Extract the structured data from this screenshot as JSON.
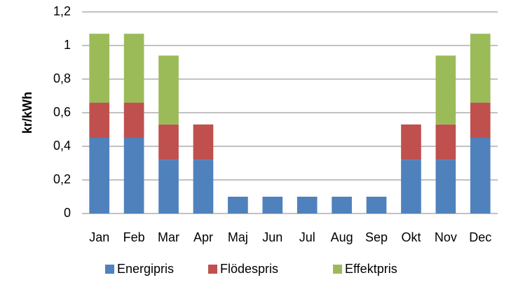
{
  "chart_data": {
    "type": "stacked_bar",
    "ylabel": "kr/kWh",
    "categories": [
      "Jan",
      "Feb",
      "Mar",
      "Apr",
      "Maj",
      "Jun",
      "Jul",
      "Aug",
      "Sep",
      "Okt",
      "Nov",
      "Dec"
    ],
    "series": [
      {
        "name": "Energipris",
        "color": "#4f81bd",
        "values": [
          0.45,
          0.45,
          0.32,
          0.32,
          0.1,
          0.1,
          0.1,
          0.1,
          0.1,
          0.32,
          0.32,
          0.45
        ]
      },
      {
        "name": "Flödespris",
        "color": "#c0504d",
        "values": [
          0.21,
          0.21,
          0.21,
          0.21,
          0,
          0,
          0,
          0,
          0,
          0.21,
          0.21,
          0.21
        ]
      },
      {
        "name": "Effektpris",
        "color": "#9bbb59",
        "values": [
          0.41,
          0.41,
          0.41,
          0,
          0,
          0,
          0,
          0,
          0,
          0,
          0.41,
          0.41
        ]
      }
    ],
    "ylim": [
      0,
      1.2
    ],
    "yticks": [
      0,
      {
        "value": 0.2,
        "label": "0,2"
      },
      {
        "value": 0.4,
        "label": "0,4"
      },
      {
        "value": 0.6,
        "label": "0,6"
      },
      {
        "value": 0.8,
        "label": "0,8"
      },
      1,
      {
        "value": 1.2,
        "label": "1,2"
      }
    ],
    "grid": true,
    "legend": "bottom"
  }
}
